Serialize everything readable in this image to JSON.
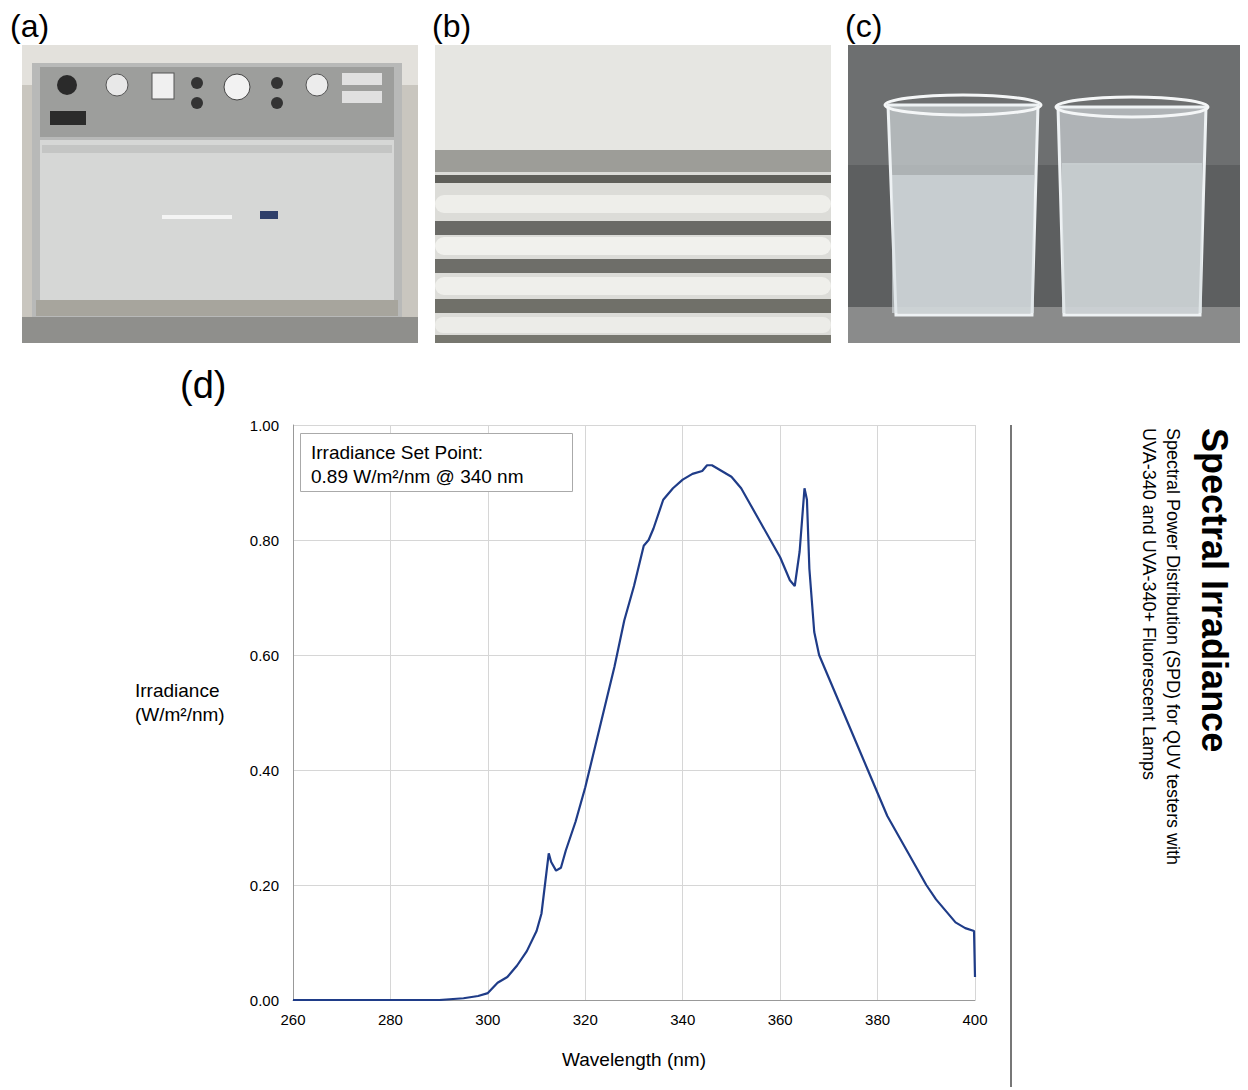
{
  "panel_labels": [
    "(a)",
    "(b)",
    "(c)",
    "(d)"
  ],
  "chart_data": {
    "type": "line",
    "title": "Spectral Irradiance",
    "subtitle": [
      "Spectral Power Distribution (SPD) for QUV testers with",
      "UVA-340 and UVA-340+ Fluorescent Lamps"
    ],
    "annotation": [
      "Irradiance Set Point:",
      "0.89 W/m²/nm @ 340 nm"
    ],
    "xlabel": "Wavelength (nm)",
    "ylabel": [
      "Irradiance",
      "(W/m²/nm)"
    ],
    "x": [
      260,
      270,
      280,
      290,
      295,
      298,
      300,
      302,
      304,
      306,
      308,
      310,
      311,
      312,
      312.5,
      313,
      314,
      315,
      316,
      318,
      320,
      322,
      324,
      326,
      328,
      330,
      332,
      333,
      334,
      336,
      338,
      340,
      342,
      344,
      345,
      346,
      348,
      350,
      352,
      354,
      356,
      358,
      360,
      362,
      363,
      364,
      365,
      365.5,
      366,
      367,
      368,
      370,
      372,
      374,
      376,
      378,
      380,
      382,
      384,
      386,
      388,
      390,
      392,
      394,
      396,
      398,
      399.8,
      400
    ],
    "values": [
      0,
      0,
      0,
      0,
      0.003,
      0.007,
      0.012,
      0.03,
      0.04,
      0.06,
      0.085,
      0.12,
      0.15,
      0.22,
      0.255,
      0.24,
      0.225,
      0.23,
      0.26,
      0.31,
      0.37,
      0.44,
      0.51,
      0.58,
      0.66,
      0.72,
      0.79,
      0.8,
      0.82,
      0.87,
      0.89,
      0.905,
      0.915,
      0.92,
      0.93,
      0.93,
      0.92,
      0.91,
      0.89,
      0.86,
      0.83,
      0.8,
      0.77,
      0.73,
      0.72,
      0.78,
      0.89,
      0.87,
      0.75,
      0.64,
      0.6,
      0.56,
      0.52,
      0.48,
      0.44,
      0.4,
      0.36,
      0.32,
      0.29,
      0.26,
      0.23,
      0.2,
      0.175,
      0.155,
      0.135,
      0.125,
      0.12,
      0.04
    ],
    "color": "#1f3c88",
    "xlim": [
      260,
      400
    ],
    "xticks": [
      260,
      280,
      300,
      320,
      340,
      360,
      380,
      400
    ],
    "ylim": [
      0,
      1
    ],
    "yticks": [
      {
        "value": 0,
        "label": "0.00"
      },
      {
        "value": 0.2,
        "label": "0.20"
      },
      {
        "value": 0.4,
        "label": "0.40"
      },
      {
        "value": 0.6,
        "label": "0.60"
      },
      {
        "value": 0.8,
        "label": "0.80"
      },
      {
        "value": 1,
        "label": "1.00"
      }
    ],
    "grid": true
  }
}
